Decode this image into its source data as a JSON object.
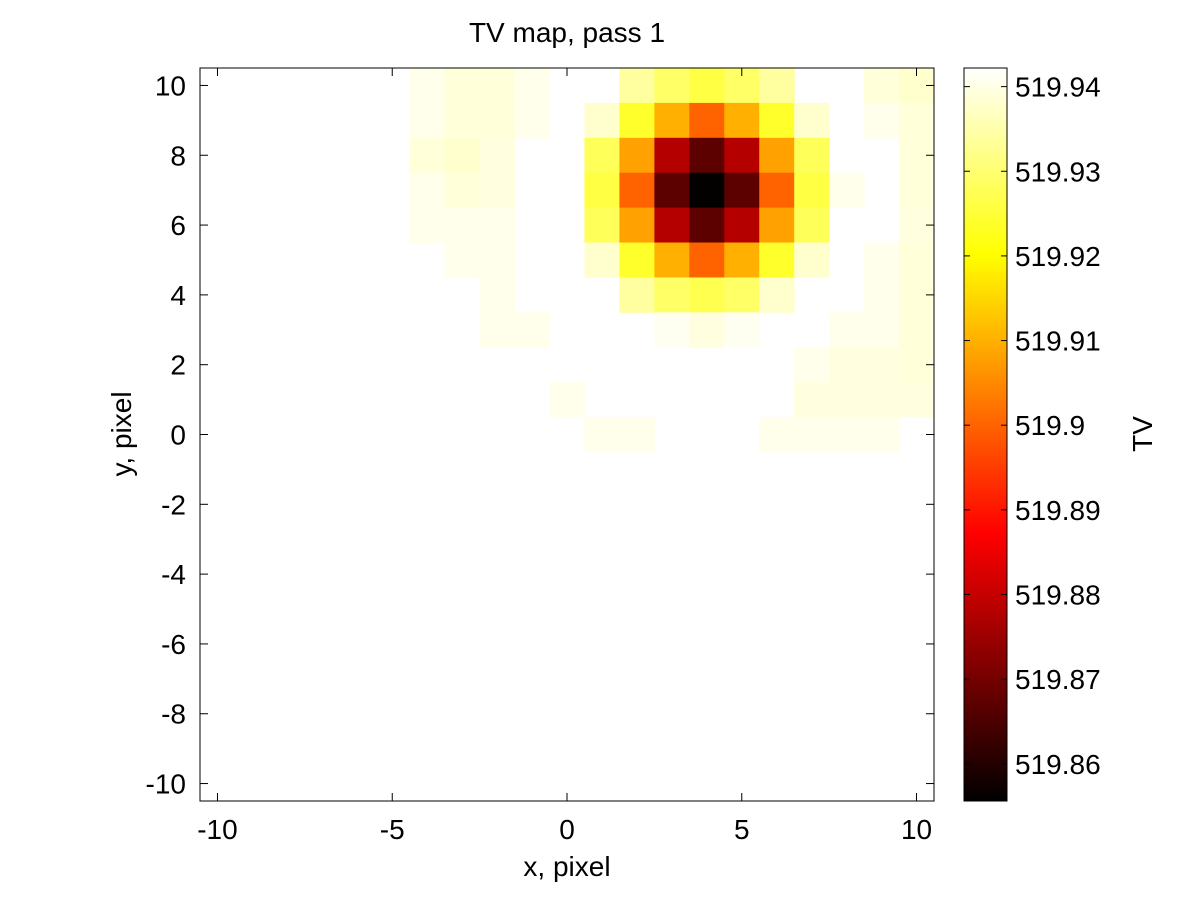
{
  "chart_data": {
    "type": "heatmap",
    "title": "TV map, pass 1",
    "xlabel": "x, pixel",
    "ylabel": "y, pixel",
    "xlim": [
      -10.5,
      10.5
    ],
    "ylim": [
      -10.5,
      10.5
    ],
    "xticks": [
      -10,
      -5,
      0,
      5,
      10
    ],
    "yticks": [
      -10,
      -8,
      -6,
      -4,
      -2,
      0,
      2,
      4,
      6,
      8,
      10
    ],
    "colormap": "hot",
    "colorbar": {
      "label": "TV",
      "min": 519.8556,
      "max": 519.9422,
      "ticks": [
        519.86,
        519.87,
        519.88,
        519.89,
        519.9,
        519.91,
        519.92,
        519.93,
        519.94
      ],
      "tick_labels": [
        "519.86",
        "519.87",
        "519.88",
        "519.89",
        "519.9",
        "519.91",
        "519.92",
        "519.93",
        "519.94"
      ]
    },
    "grid": false,
    "x": [
      -10,
      -9,
      -8,
      -7,
      -6,
      -5,
      -4,
      -3,
      -2,
      -1,
      0,
      1,
      2,
      3,
      4,
      5,
      6,
      7,
      8,
      9,
      10
    ],
    "y": [
      10,
      9,
      8,
      7,
      6,
      5,
      4,
      3,
      2,
      1,
      0
    ],
    "y_note_default_below": 519.942,
    "default_value": 519.942,
    "z": [
      [
        519.942,
        519.942,
        519.942,
        519.942,
        519.942,
        519.942,
        519.9405,
        519.939,
        519.939,
        519.9405,
        519.942,
        519.942,
        519.934,
        519.929,
        519.926,
        519.929,
        519.934,
        519.942,
        519.942,
        519.939,
        519.938
      ],
      [
        519.942,
        519.942,
        519.942,
        519.942,
        519.942,
        519.942,
        519.9405,
        519.939,
        519.939,
        519.9405,
        519.942,
        519.938,
        519.924,
        519.91,
        519.9,
        519.91,
        519.924,
        519.938,
        519.942,
        519.9405,
        519.939
      ],
      [
        519.942,
        519.942,
        519.942,
        519.942,
        519.942,
        519.942,
        519.939,
        519.938,
        519.9395,
        519.942,
        519.942,
        519.928,
        519.908,
        519.878,
        519.867,
        519.878,
        519.908,
        519.928,
        519.942,
        519.942,
        519.939
      ],
      [
        519.942,
        519.942,
        519.942,
        519.942,
        519.942,
        519.942,
        519.9405,
        519.939,
        519.9395,
        519.942,
        519.942,
        519.926,
        519.9,
        519.867,
        519.856,
        519.867,
        519.9,
        519.926,
        519.9405,
        519.942,
        519.939
      ],
      [
        519.942,
        519.942,
        519.942,
        519.942,
        519.942,
        519.942,
        519.9405,
        519.9405,
        519.9405,
        519.942,
        519.942,
        519.928,
        519.908,
        519.878,
        519.867,
        519.878,
        519.908,
        519.928,
        519.942,
        519.942,
        519.9395
      ],
      [
        519.942,
        519.942,
        519.942,
        519.942,
        519.942,
        519.942,
        519.942,
        519.9405,
        519.9405,
        519.942,
        519.942,
        519.938,
        519.924,
        519.91,
        519.9,
        519.91,
        519.924,
        519.938,
        519.942,
        519.9405,
        519.939
      ],
      [
        519.942,
        519.942,
        519.942,
        519.942,
        519.942,
        519.942,
        519.942,
        519.942,
        519.9405,
        519.942,
        519.942,
        519.942,
        519.934,
        519.929,
        519.927,
        519.929,
        519.938,
        519.942,
        519.942,
        519.9405,
        519.939
      ],
      [
        519.942,
        519.942,
        519.942,
        519.942,
        519.942,
        519.942,
        519.942,
        519.942,
        519.9405,
        519.9405,
        519.942,
        519.942,
        519.942,
        519.941,
        519.9395,
        519.941,
        519.942,
        519.942,
        519.9405,
        519.9405,
        519.939
      ],
      [
        519.942,
        519.942,
        519.942,
        519.942,
        519.942,
        519.942,
        519.942,
        519.942,
        519.942,
        519.942,
        519.942,
        519.942,
        519.942,
        519.942,
        519.942,
        519.942,
        519.942,
        519.9405,
        519.9395,
        519.9395,
        519.939
      ],
      [
        519.942,
        519.942,
        519.942,
        519.942,
        519.942,
        519.942,
        519.942,
        519.942,
        519.942,
        519.942,
        519.9405,
        519.942,
        519.942,
        519.942,
        519.942,
        519.942,
        519.942,
        519.9395,
        519.9395,
        519.9395,
        519.9395
      ],
      [
        519.942,
        519.942,
        519.942,
        519.942,
        519.942,
        519.942,
        519.942,
        519.942,
        519.942,
        519.942,
        519.942,
        519.9405,
        519.9405,
        519.942,
        519.942,
        519.942,
        519.9405,
        519.9405,
        519.9405,
        519.9405,
        519.942
      ]
    ],
    "z_extra_row_y": [
      0
    ],
    "z_extra": [
      [
        519.942,
        519.942,
        519.942,
        519.942,
        519.942,
        519.942,
        519.942,
        519.942,
        519.942,
        519.942,
        519.942,
        519.942,
        519.9405,
        519.9405,
        519.9405,
        519.9405,
        519.942,
        519.9405,
        519.9405,
        519.9405,
        519.9405
      ]
    ]
  }
}
